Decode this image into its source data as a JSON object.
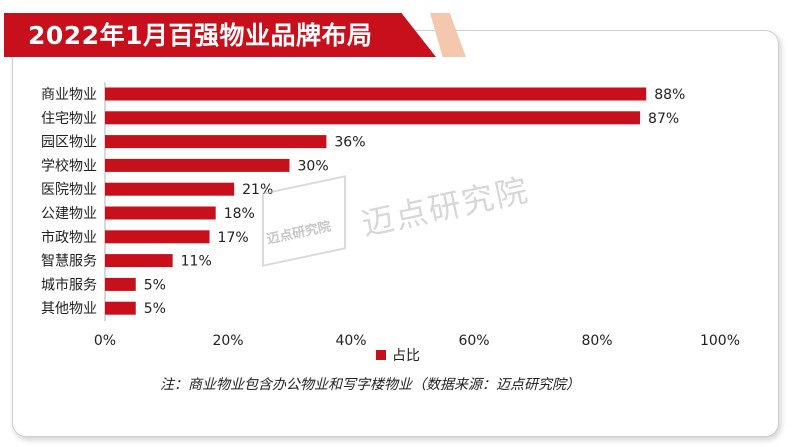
{
  "title": "2022年1月百强物业品牌布局",
  "legend_label": "占比",
  "note": "注：商业物业包含办公物业和写字楼物业（数据来源：迈点研究院）",
  "watermark": "迈点研究院",
  "colors": {
    "bar": "#c8101c",
    "banner": "#c8101c",
    "axis": "#b0b0b0"
  },
  "chart_data": {
    "type": "bar",
    "orientation": "horizontal",
    "categories": [
      "商业物业",
      "住宅物业",
      "园区物业",
      "学校物业",
      "医院物业",
      "公建物业",
      "市政物业",
      "智慧服务",
      "城市服务",
      "其他物业"
    ],
    "values": [
      88,
      87,
      36,
      30,
      21,
      18,
      17,
      11,
      5,
      5
    ],
    "value_labels": [
      "88%",
      "87%",
      "36%",
      "30%",
      "21%",
      "18%",
      "17%",
      "11%",
      "5%",
      "5%"
    ],
    "xlim": [
      0,
      100
    ],
    "xticks": [
      0,
      20,
      40,
      60,
      80,
      100
    ],
    "xtick_labels": [
      "0%",
      "20%",
      "40%",
      "60%",
      "80%",
      "100%"
    ],
    "series": [
      {
        "name": "占比",
        "values": [
          88,
          87,
          36,
          30,
          21,
          18,
          17,
          11,
          5,
          5
        ]
      }
    ],
    "grid": false,
    "legend_position": "bottom"
  }
}
